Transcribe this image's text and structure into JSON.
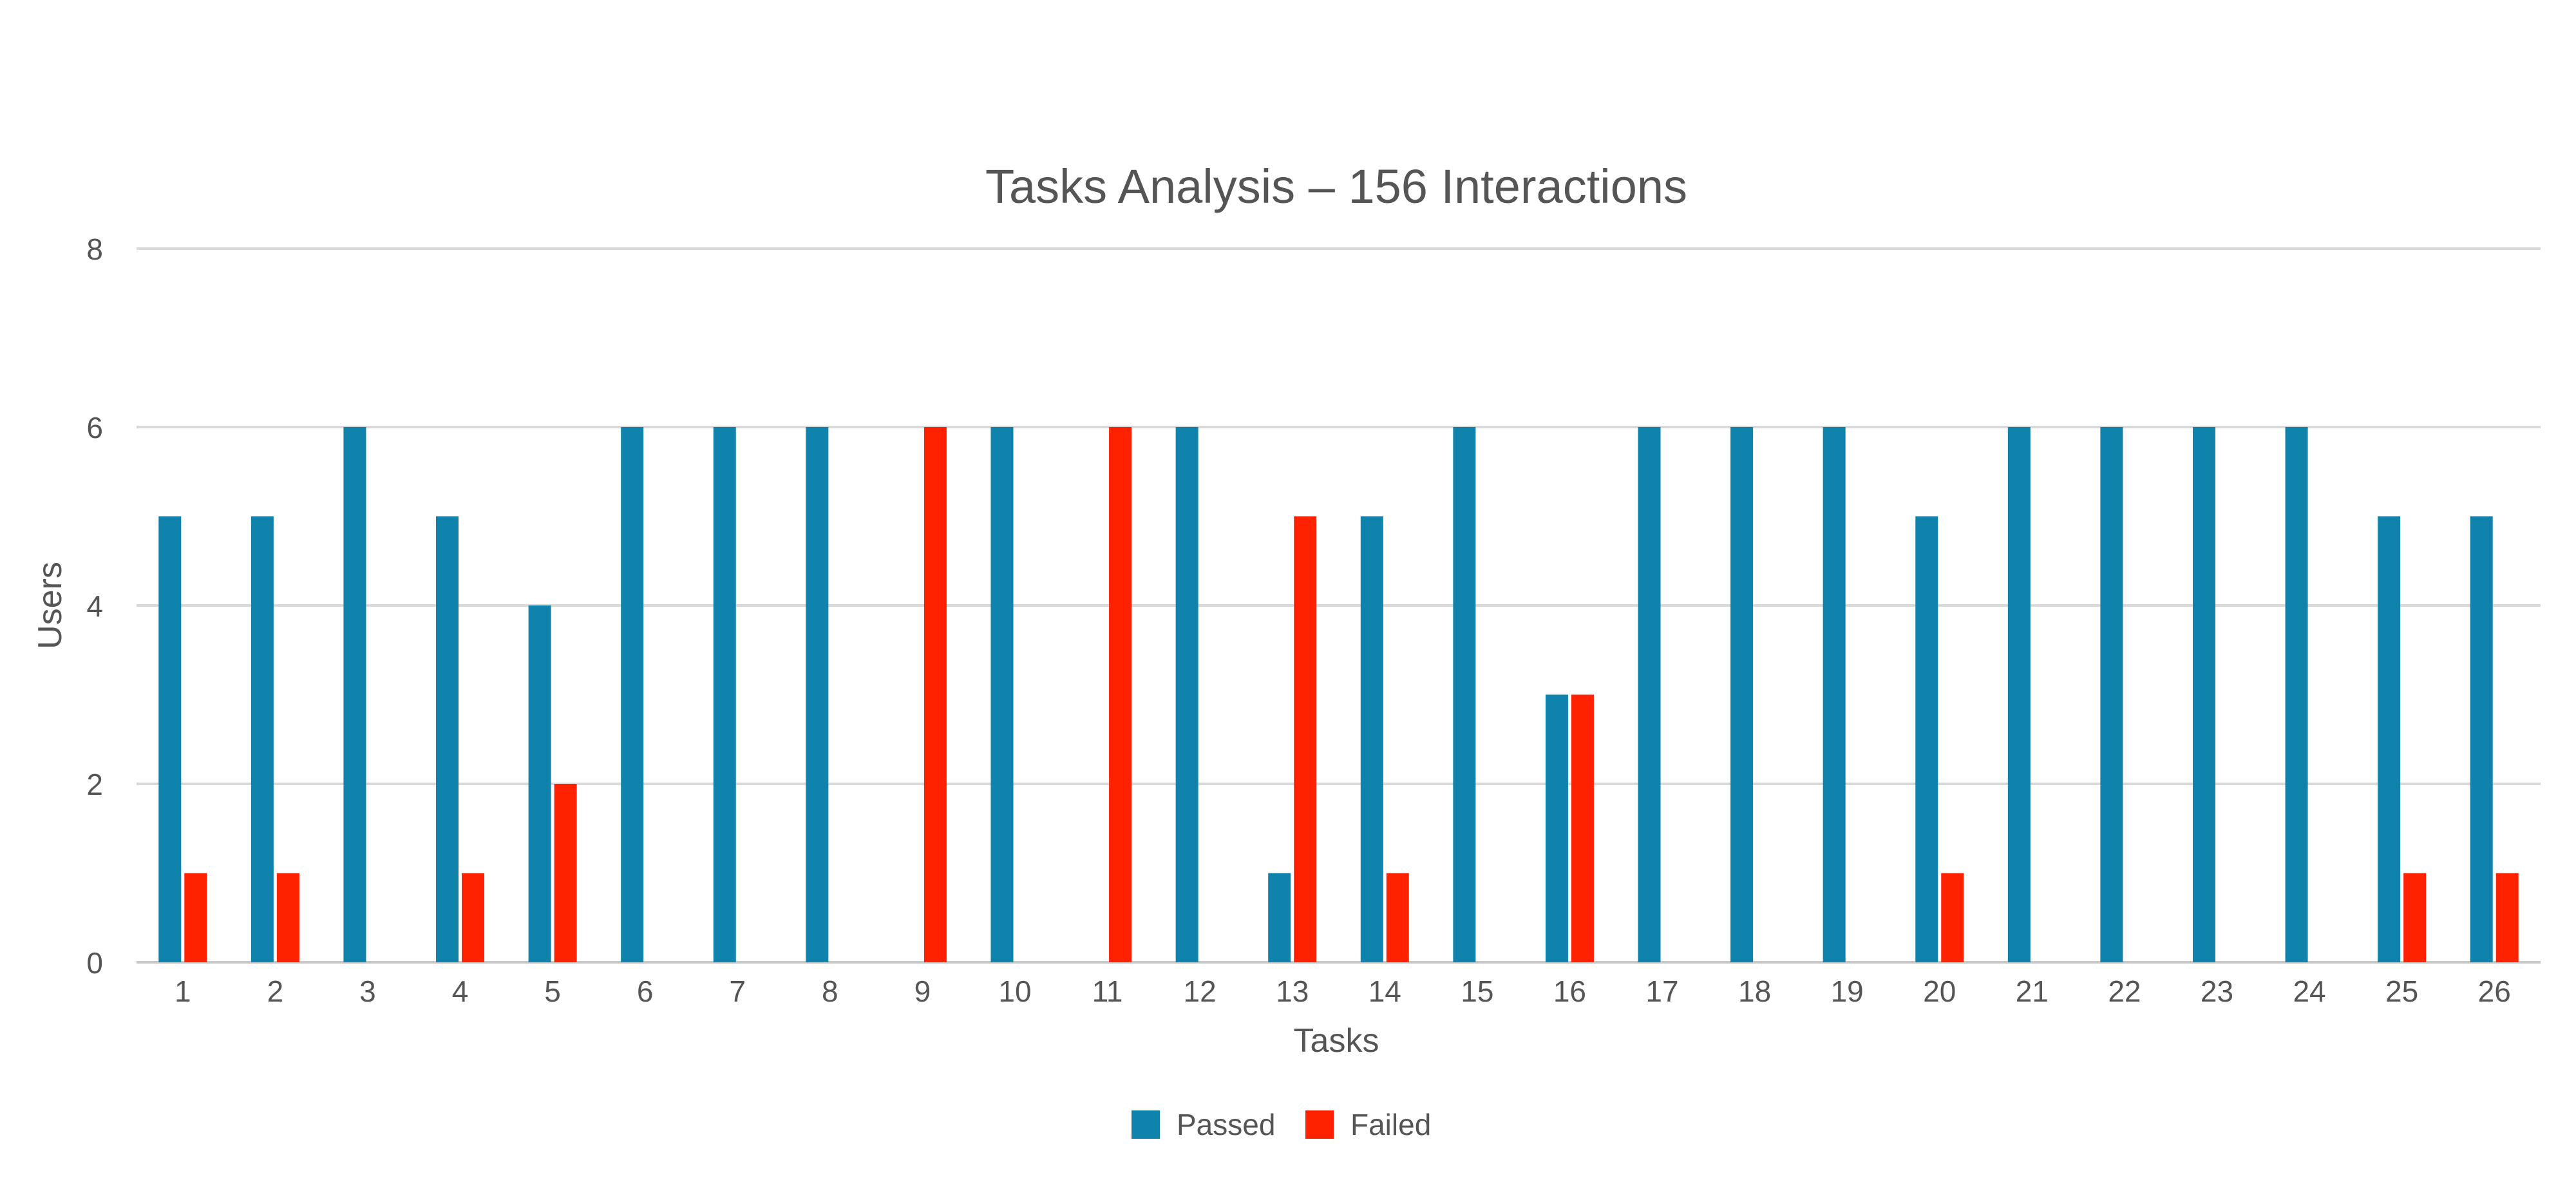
{
  "chart_data": {
    "type": "bar",
    "title": "Tasks Analysis – 156 Interactions",
    "xlabel": "Tasks",
    "ylabel": "Users",
    "ylim": [
      0,
      8
    ],
    "yticks": [
      0,
      2,
      4,
      6,
      8
    ],
    "grid": true,
    "legend_position": "bottom",
    "categories": [
      "1",
      "2",
      "3",
      "4",
      "5",
      "6",
      "7",
      "8",
      "9",
      "10",
      "11",
      "12",
      "13",
      "14",
      "15",
      "16",
      "17",
      "18",
      "19",
      "20",
      "21",
      "22",
      "23",
      "24",
      "25",
      "26"
    ],
    "series": [
      {
        "name": "Passed",
        "color": "#0f83ab",
        "values": [
          5,
          5,
          6,
          5,
          4,
          6,
          6,
          6,
          0,
          6,
          0,
          6,
          1,
          5,
          6,
          3,
          6,
          6,
          6,
          5,
          6,
          6,
          6,
          6,
          5,
          5
        ]
      },
      {
        "name": "Failed",
        "color": "#ff2200",
        "values": [
          1,
          1,
          0,
          1,
          2,
          0,
          0,
          0,
          6,
          0,
          6,
          0,
          5,
          1,
          0,
          3,
          0,
          0,
          0,
          1,
          0,
          0,
          0,
          0,
          1,
          1
        ]
      }
    ]
  }
}
